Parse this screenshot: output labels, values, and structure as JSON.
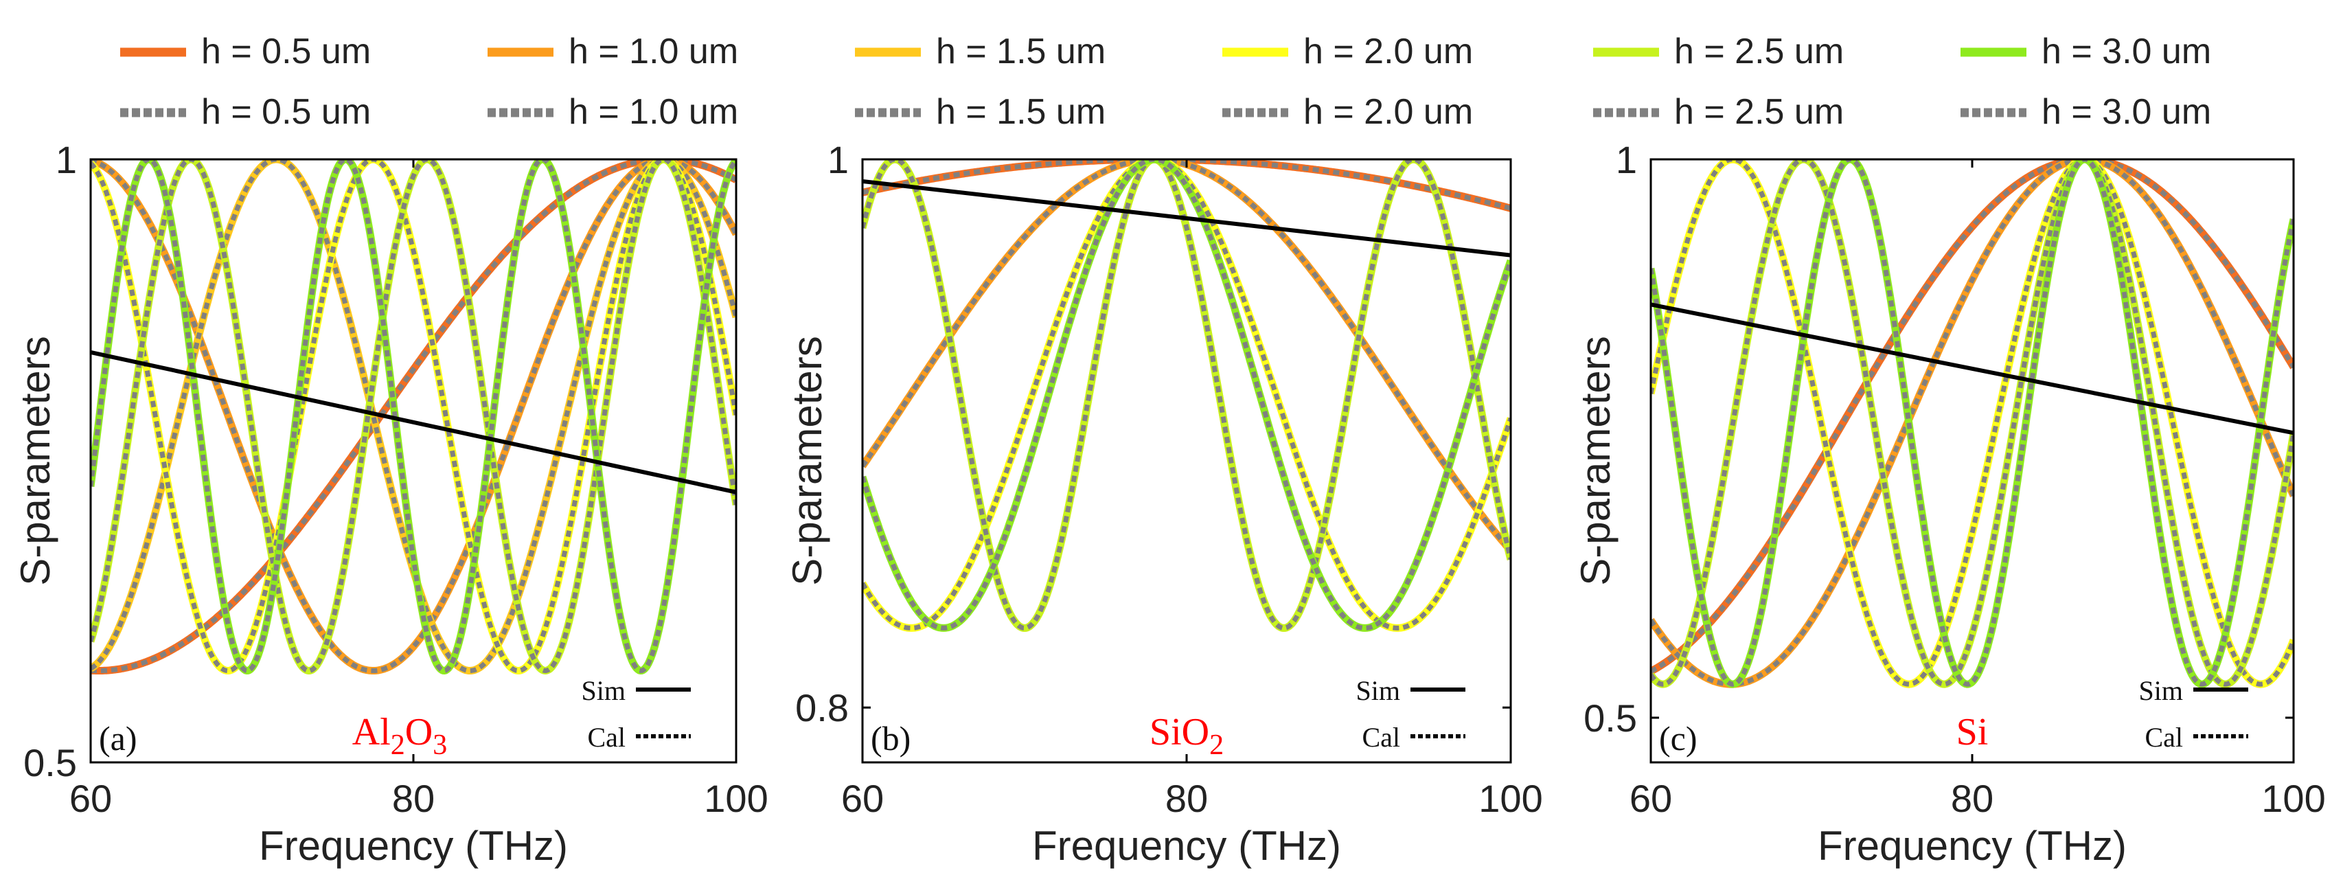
{
  "legend": {
    "entries": [
      {
        "label": "h = 0.5 um",
        "color": "#F26E22"
      },
      {
        "label": "h = 1.0 um",
        "color": "#FB9C1D"
      },
      {
        "label": "h = 1.5 um",
        "color": "#FFC81E"
      },
      {
        "label": "h = 2.0 um",
        "color": "#FFFF1A"
      },
      {
        "label": "h = 2.5 um",
        "color": "#C7F21E"
      },
      {
        "label": "h = 3.0 um",
        "color": "#8FEA1E"
      }
    ],
    "dotted_color": "#808080",
    "sim_line_color": "#000000"
  },
  "chart_data": [
    {
      "type": "line",
      "panel_label": "(a)",
      "material": {
        "base": "Al",
        "sub1": "2",
        "mid": "O",
        "sub2": "3"
      },
      "xlabel": "Frequency (THz)",
      "ylabel": "S-parameters",
      "xlim": [
        60,
        100
      ],
      "ylim": [
        0.5,
        1
      ],
      "xticks": [
        60,
        80,
        100
      ],
      "yticks": [
        0.5,
        1
      ],
      "xtick_labels": [
        "60",
        "80",
        "100"
      ],
      "ytick_labels": [
        "0.5",
        "1"
      ],
      "line_legend": {
        "sim": "Sim",
        "cal": "Cal"
      },
      "ymin_curve": 0.576,
      "sim_line": {
        "x": [
          60,
          100
        ],
        "y": [
          0.84,
          0.724
        ]
      },
      "series": [
        {
          "name": "h = 0.5 um",
          "peaks": [
            95.5
          ],
          "fsr": 70
        },
        {
          "name": "h = 1.0 um",
          "peaks": [
            95.5
          ],
          "fsr": 36
        },
        {
          "name": "h = 1.5 um",
          "peaks": [
            71.5,
            95.5
          ],
          "fsr": 24
        },
        {
          "name": "h = 2.0 um",
          "peaks": [
            77.5,
            95.5
          ],
          "fsr": 18
        },
        {
          "name": "h = 2.5 um",
          "peaks": [
            66.2,
            80.9,
            95.5
          ],
          "fsr": 14.65
        },
        {
          "name": "h = 3.0 um",
          "peaks": [
            63.6,
            75.8,
            95.5
          ],
          "fsr": 12.2
        }
      ]
    },
    {
      "type": "line",
      "panel_label": "(b)",
      "material": {
        "base": "SiO",
        "sub1": "2",
        "mid": "",
        "sub2": ""
      },
      "xlabel": "Frequency (THz)",
      "ylabel": "S-parameters",
      "xlim": [
        60,
        100
      ],
      "ylim": [
        0.78,
        1
      ],
      "xticks": [
        60,
        80,
        100
      ],
      "yticks": [
        0.8,
        1
      ],
      "xtick_labels": [
        "60",
        "80",
        "100"
      ],
      "ytick_labels": [
        "0.8",
        "1"
      ],
      "line_legend": {
        "sim": "Sim",
        "cal": "Cal"
      },
      "ymin_curve": 0.829,
      "sim_line": {
        "x": [
          60,
          100
        ],
        "y": [
          0.992,
          0.965
        ]
      },
      "series": [
        {
          "name": "h = 0.5 um",
          "peaks": [
            78
          ],
          "fsr": 210
        },
        {
          "name": "h = 1.0 um",
          "peaks": [
            78
          ],
          "fsr": 60
        },
        {
          "name": "h = 1.5 um",
          "peaks": [
            62,
            78,
            94
          ],
          "fsr": 16
        },
        {
          "name": "h = 2.0 um",
          "peaks": [
            78
          ],
          "fsr": 30
        },
        {
          "name": "h = 2.5 um",
          "peaks": [
            62,
            78,
            94
          ],
          "fsr": 16
        },
        {
          "name": "h = 3.0 um",
          "peaks": [
            78
          ],
          "fsr": 26
        }
      ]
    },
    {
      "type": "line",
      "panel_label": "(c)",
      "material": {
        "base": "Si",
        "sub1": "",
        "mid": "",
        "sub2": ""
      },
      "xlabel": "Frequency (THz)",
      "ylabel": "S-parameters",
      "xlim": [
        60,
        100
      ],
      "ylim": [
        0.46,
        1
      ],
      "xticks": [
        60,
        80,
        100
      ],
      "yticks": [
        0.5,
        1
      ],
      "xtick_labels": [
        "60",
        "80",
        "100"
      ],
      "ytick_labels": [
        "0.5",
        "1"
      ],
      "line_legend": {
        "sim": "Sim",
        "cal": "Cal"
      },
      "ymin_curve": 0.53,
      "sim_line": {
        "x": [
          60,
          100
        ],
        "y": [
          0.87,
          0.755
        ]
      },
      "series": [
        {
          "name": "h = 0.5 um",
          "peaks": [
            87
          ],
          "fsr": 60
        },
        {
          "name": "h = 1.0 um",
          "peaks": [
            87
          ],
          "fsr": 44
        },
        {
          "name": "h = 1.5 um",
          "peaks": [
            65.1,
            87
          ],
          "fsr": 21.9
        },
        {
          "name": "h = 2.0 um",
          "peaks": [
            65.1,
            87
          ],
          "fsr": 21.9
        },
        {
          "name": "h = 2.5 um",
          "peaks": [
            69.5,
            87
          ],
          "fsr": 17.5
        },
        {
          "name": "h = 3.0 um",
          "peaks": [
            72.4,
            87
          ],
          "fsr": 14.6
        }
      ]
    }
  ]
}
